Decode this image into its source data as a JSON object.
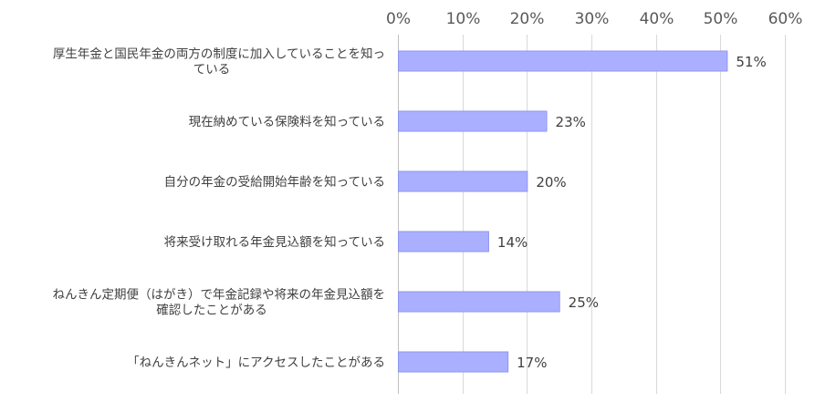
{
  "chart_data": {
    "type": "bar",
    "orientation": "horizontal",
    "categories": [
      [
        "厚生年金と国民年金の両方の制度に加入していることを知っ",
        "ている"
      ],
      [
        "現在納めている保険料を知っている"
      ],
      [
        "自分の年金の受給開始年齢を知っている"
      ],
      [
        "将来受け取れる年金見込額を知っている"
      ],
      [
        "ねんきん定期便（はがき）で年金記録や将来の年金見込額を",
        "確認したことがある"
      ],
      [
        "「ねんきんネット」にアクセスしたことがある"
      ]
    ],
    "values": [
      51,
      23,
      20,
      14,
      25,
      17
    ],
    "data_labels": [
      "51%",
      "23%",
      "20%",
      "14%",
      "25%",
      "17%"
    ],
    "x_ticks": [
      0,
      10,
      20,
      30,
      40,
      50,
      60
    ],
    "x_tick_labels": [
      "0%",
      "10%",
      "20%",
      "30%",
      "40%",
      "50%",
      "60%"
    ],
    "xlim": [
      0,
      60
    ],
    "axis_position": "top",
    "grid": true,
    "bar_color": "#aab0ff",
    "bar_border_color": "#8f96f0",
    "grid_color": "#d9d9d9"
  }
}
